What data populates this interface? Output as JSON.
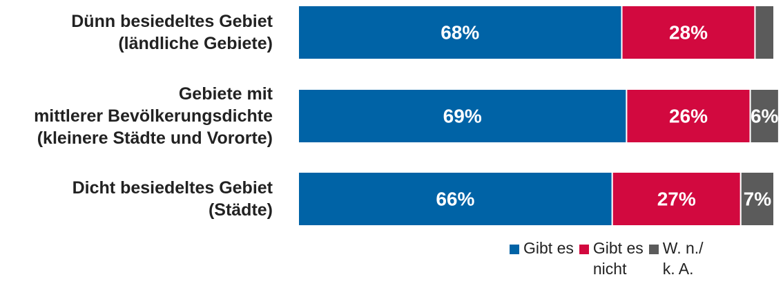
{
  "chart_data": {
    "type": "bar",
    "orientation": "horizontal",
    "stacked": true,
    "xlim": [
      0,
      100
    ],
    "grid": false,
    "legend_position": "bottom-right",
    "categories": [
      [
        "Dünn besiedeltes Gebiet",
        "(ländliche Gebiete)"
      ],
      [
        "Gebiete mit",
        "mittlerer Bevölkerungsdichte",
        "(kleinere Städte und Vororte)"
      ],
      [
        "Dicht besiedeltes Gebiet",
        "(Städte)"
      ]
    ],
    "series": [
      {
        "name": "Gibt es",
        "legend_lines": [
          "Gibt es"
        ],
        "color": "#0063a6",
        "values": [
          68,
          69,
          66
        ],
        "labels": [
          "68%",
          "69%",
          "66%"
        ]
      },
      {
        "name": "Gibt es nicht",
        "legend_lines": [
          "Gibt es",
          "nicht"
        ],
        "color": "#d2093f",
        "values": [
          28,
          26,
          27
        ],
        "labels": [
          "28%",
          "26%",
          "27%"
        ]
      },
      {
        "name": "W. n./ k. A.",
        "legend_lines": [
          "W. n./",
          "k. A."
        ],
        "color": "#5b5b5b",
        "values": [
          4,
          6,
          7
        ],
        "labels": [
          "",
          "6%",
          "7%"
        ]
      }
    ]
  }
}
